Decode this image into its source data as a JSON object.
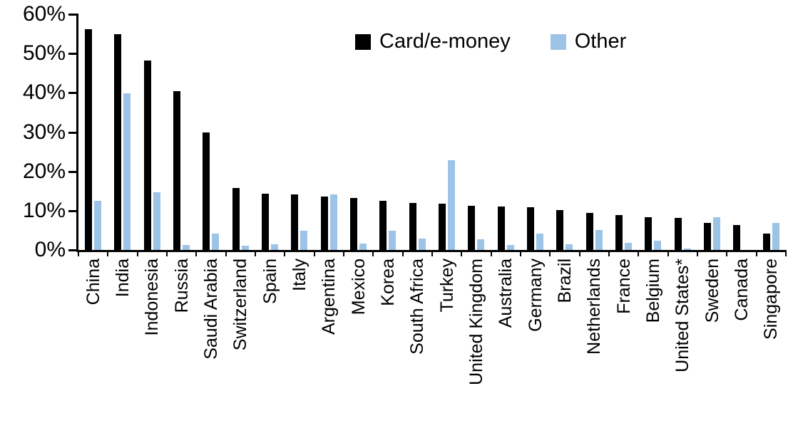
{
  "chart_data": {
    "type": "bar",
    "title": "",
    "xlabel": "",
    "ylabel": "",
    "ylim": [
      0,
      60
    ],
    "ytick_step": 10,
    "ytick_labels": [
      "0%",
      "10%",
      "20%",
      "30%",
      "40%",
      "50%",
      "60%"
    ],
    "grid": false,
    "legend_position": "top-center",
    "categories": [
      "China",
      "India",
      "Indonesia",
      "Russia",
      "Saudi Arabia",
      "Switzerland",
      "Spain",
      "Italy",
      "Argentina",
      "Mexico",
      "Korea",
      "South Africa",
      "Turkey",
      "United Kingdom",
      "Australia",
      "Germany",
      "Brazil",
      "Netherlands",
      "France",
      "Belgium",
      "United States*",
      "Sweden",
      "Canada",
      "Singapore"
    ],
    "series": [
      {
        "name": "Card/e-money",
        "color": "#000000",
        "values": [
          56.2,
          55.0,
          48.3,
          40.5,
          29.9,
          15.8,
          14.4,
          14.1,
          13.6,
          13.2,
          12.5,
          11.9,
          11.8,
          11.2,
          11.0,
          10.8,
          10.1,
          9.4,
          8.9,
          8.3,
          8.1,
          6.9,
          6.3,
          4.2
        ]
      },
      {
        "name": "Other",
        "color": "#9DC3E6",
        "values": [
          12.5,
          39.8,
          14.7,
          1.2,
          4.2,
          1.1,
          1.5,
          4.9,
          14.1,
          1.7,
          4.9,
          2.9,
          22.8,
          2.7,
          1.2,
          4.1,
          1.4,
          5.0,
          1.8,
          2.3,
          0.3,
          8.3,
          0,
          6.9
        ]
      }
    ]
  }
}
